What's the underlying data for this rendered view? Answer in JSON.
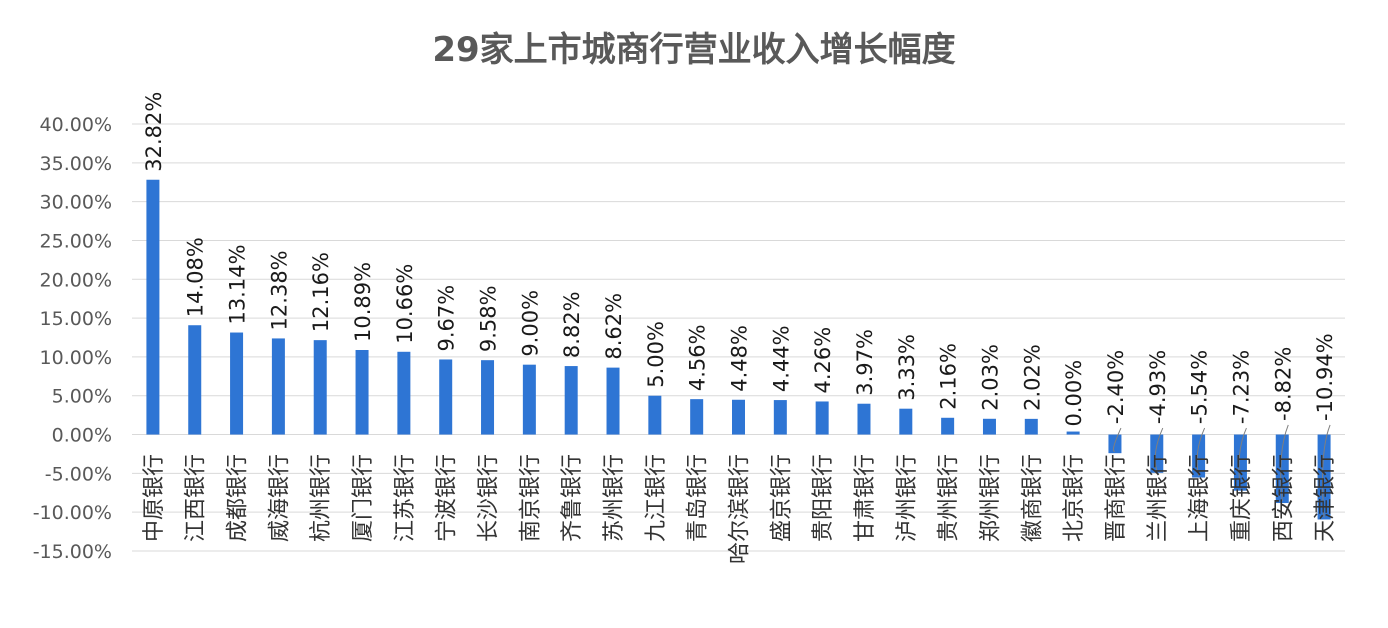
{
  "chart_data": {
    "type": "bar",
    "title": "29家上市城商行营业收入增长幅度",
    "xlabel": "",
    "ylabel": "",
    "ylim": [
      -0.15,
      0.4
    ],
    "y_ticks": [
      "40.00%",
      "35.00%",
      "30.00%",
      "25.00%",
      "20.00%",
      "15.00%",
      "10.00%",
      "5.00%",
      "0.00%",
      "-5.00%",
      "-10.00%",
      "-15.00%"
    ],
    "grid": true,
    "legend": "none",
    "bar_color": "#2e75d4",
    "categories": [
      "中原银行",
      "江西银行",
      "成都银行",
      "威海银行",
      "杭州银行",
      "厦门银行",
      "江苏银行",
      "宁波银行",
      "长沙银行",
      "南京银行",
      "齐鲁银行",
      "苏州银行",
      "九江银行",
      "青岛银行",
      "哈尔滨银行",
      "盛京银行",
      "贵阳银行",
      "甘肃银行",
      "泸州银行",
      "贵州银行",
      "郑州银行",
      "徽商银行",
      "北京银行",
      "晋商银行",
      "兰州银行",
      "上海银行",
      "重庆银行",
      "西安银行",
      "天津银行"
    ],
    "values": [
      0.3282,
      0.1408,
      0.1314,
      0.1238,
      0.1216,
      0.1089,
      0.1066,
      0.0967,
      0.0958,
      0.09,
      0.0882,
      0.0862,
      0.05,
      0.0456,
      0.0448,
      0.0444,
      0.0426,
      0.0397,
      0.0333,
      0.0216,
      0.0203,
      0.0202,
      0.0,
      -0.024,
      -0.0493,
      -0.0554,
      -0.0723,
      -0.0882,
      -0.1094
    ],
    "data_labels": [
      "32.82%",
      "14.08%",
      "13.14%",
      "12.38%",
      "12.16%",
      "10.89%",
      "10.66%",
      "9.67%",
      "9.58%",
      "9.00%",
      "8.82%",
      "8.62%",
      "5.00%",
      "4.56%",
      "4.48%",
      "4.44%",
      "4.26%",
      "3.97%",
      "3.33%",
      "2.16%",
      "2.03%",
      "2.02%",
      "0.00%",
      "-2.40%",
      "-4.93%",
      "-5.54%",
      "-7.23%",
      "-8.82%",
      "-10.94%"
    ]
  }
}
